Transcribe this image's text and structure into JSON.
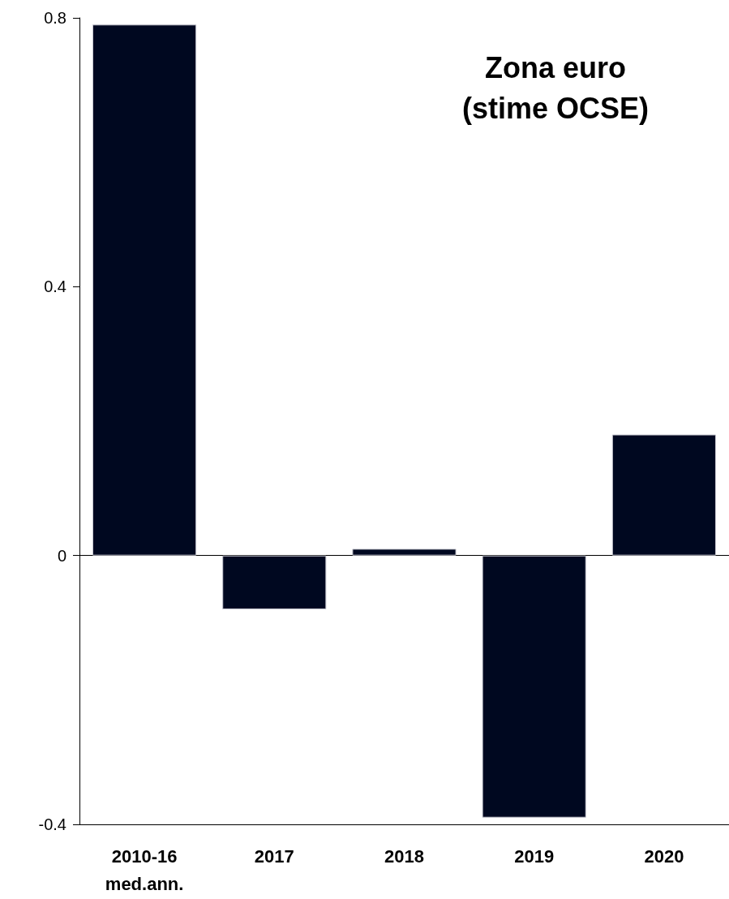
{
  "chart_data": {
    "type": "bar",
    "title": "Zona euro",
    "subtitle": "(stime OCSE)",
    "categories": [
      "2010-16 med.ann.",
      "2017",
      "2018",
      "2019",
      "2020"
    ],
    "values": [
      0.79,
      -0.08,
      0.01,
      -0.39,
      0.18
    ],
    "color": "#000820",
    "ylim": [
      -0.4,
      0.8
    ],
    "yticks": [
      -0.4,
      0,
      0.4,
      0.8
    ]
  }
}
